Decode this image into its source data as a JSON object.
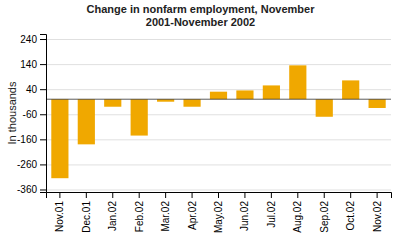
{
  "chart_data": {
    "type": "bar",
    "title": "Change in nonfarm employment, November\n2001-November 2002",
    "categories": [
      "Nov.01",
      "Dec.01",
      "Jan.02",
      "Feb.02",
      "Mar.02",
      "Apr.02",
      "May.02",
      "Jun.02",
      "Jul.02",
      "Aug.02",
      "Sep.02",
      "Oct.02",
      "Nov.02"
    ],
    "values": [
      -315,
      -180,
      -30,
      -145,
      -10,
      -30,
      30,
      35,
      55,
      135,
      -70,
      75,
      -35
    ],
    "color": "#F0A800",
    "ylabel": "In thousands",
    "ylim": [
      -370,
      260
    ],
    "yticks": [
      -360,
      -260,
      -160,
      -60,
      40,
      140,
      240
    ],
    "grid": true
  }
}
